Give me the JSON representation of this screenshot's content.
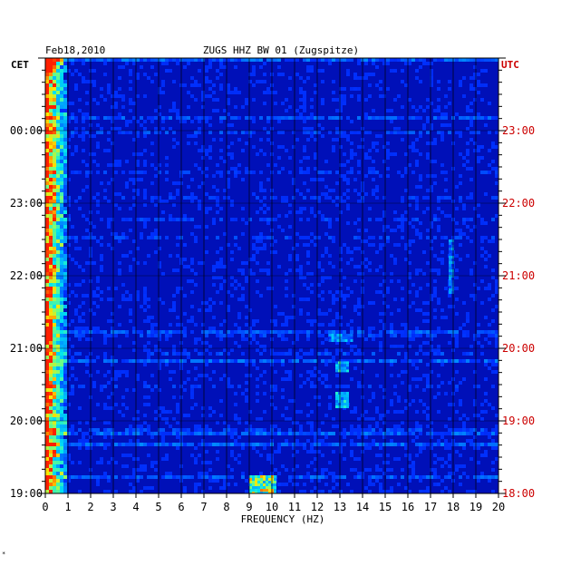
{
  "chart_data": {
    "type": "heatmap",
    "title": "ZUGS HHZ BW 01 (Zugspitze)",
    "date": "Feb18,2010",
    "xlabel": "FREQUENCY (HZ)",
    "xlim": [
      0,
      20
    ],
    "x_ticks": [
      "0",
      "1",
      "2",
      "3",
      "4",
      "5",
      "6",
      "7",
      "8",
      "9",
      "10",
      "11",
      "12",
      "13",
      "14",
      "15",
      "16",
      "17",
      "18",
      "19",
      "20"
    ],
    "left_axis": {
      "label": "CET",
      "ticks": [
        "19:00",
        "20:00",
        "21:00",
        "22:00",
        "23:00",
        "00:00"
      ]
    },
    "right_axis": {
      "label": "UTC",
      "ticks": [
        "18:00",
        "19:00",
        "20:00",
        "21:00",
        "22:00",
        "23:00"
      ]
    },
    "grid": true,
    "colors": {
      "background_low": "#0010b8",
      "high": "#ff2000",
      "mid": "#00d0ff",
      "utc_text": "#cc0000"
    },
    "features": [
      {
        "freq_range": [
          0,
          1
        ],
        "time_range": "all",
        "intensity": "high"
      },
      {
        "freq_range": [
          9,
          10.2
        ],
        "time": "18:00 UTC",
        "intensity": "high"
      },
      {
        "freq_range": [
          12.8,
          13.3
        ],
        "time": "19:15 UTC",
        "intensity": "medium"
      },
      {
        "freq_range": [
          12.8,
          13.3
        ],
        "time": "19:45 UTC",
        "intensity": "medium"
      },
      {
        "freq_range": [
          12.5,
          13.5
        ],
        "time": "20:10 UTC",
        "intensity": "low"
      },
      {
        "freq_range": [
          17.8,
          18.0
        ],
        "time": "20:45-21:30 UTC",
        "intensity": "low"
      }
    ]
  },
  "footer_mark": "*"
}
